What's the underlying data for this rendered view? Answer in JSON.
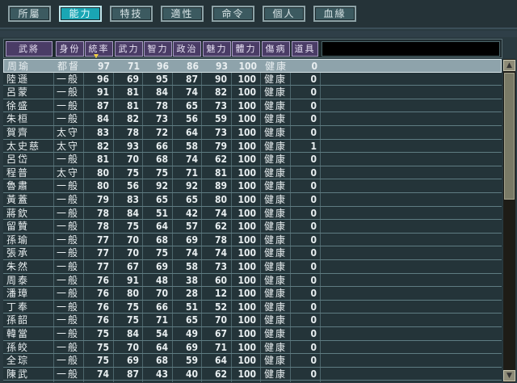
{
  "tabs": [
    {
      "label": "所屬"
    },
    {
      "label": "能力",
      "active": true
    },
    {
      "label": "特技"
    },
    {
      "label": "適性"
    },
    {
      "label": "命令"
    },
    {
      "label": "個人"
    },
    {
      "label": "血緣"
    }
  ],
  "columns": [
    "武將",
    "身份",
    "統率",
    "武力",
    "智力",
    "政治",
    "魅力",
    "體力",
    "傷病",
    "道具"
  ],
  "sort_column": "統率",
  "selected_row": 0,
  "rows": [
    [
      "周瑜",
      "都督",
      "97",
      "71",
      "96",
      "86",
      "93",
      "100",
      "健康",
      "0"
    ],
    [
      "陸遜",
      "一般",
      "96",
      "69",
      "95",
      "87",
      "90",
      "100",
      "健康",
      "0"
    ],
    [
      "呂蒙",
      "一般",
      "91",
      "81",
      "84",
      "74",
      "82",
      "100",
      "健康",
      "0"
    ],
    [
      "徐盛",
      "一般",
      "87",
      "81",
      "78",
      "65",
      "73",
      "100",
      "健康",
      "0"
    ],
    [
      "朱桓",
      "一般",
      "84",
      "82",
      "73",
      "56",
      "59",
      "100",
      "健康",
      "0"
    ],
    [
      "賀齊",
      "太守",
      "83",
      "78",
      "72",
      "64",
      "73",
      "100",
      "健康",
      "0"
    ],
    [
      "太史慈",
      "太守",
      "82",
      "93",
      "66",
      "58",
      "79",
      "100",
      "健康",
      "1"
    ],
    [
      "呂岱",
      "一般",
      "81",
      "70",
      "68",
      "74",
      "62",
      "100",
      "健康",
      "0"
    ],
    [
      "程普",
      "太守",
      "80",
      "75",
      "75",
      "71",
      "81",
      "100",
      "健康",
      "0"
    ],
    [
      "魯肅",
      "一般",
      "80",
      "56",
      "92",
      "92",
      "89",
      "100",
      "健康",
      "0"
    ],
    [
      "黃蓋",
      "一般",
      "79",
      "83",
      "65",
      "65",
      "80",
      "100",
      "健康",
      "0"
    ],
    [
      "蔣欽",
      "一般",
      "78",
      "84",
      "51",
      "42",
      "74",
      "100",
      "健康",
      "0"
    ],
    [
      "留贊",
      "一般",
      "78",
      "75",
      "64",
      "57",
      "62",
      "100",
      "健康",
      "0"
    ],
    [
      "孫瑜",
      "一般",
      "77",
      "70",
      "68",
      "69",
      "78",
      "100",
      "健康",
      "0"
    ],
    [
      "張承",
      "一般",
      "77",
      "70",
      "75",
      "74",
      "74",
      "100",
      "健康",
      "0"
    ],
    [
      "朱然",
      "一般",
      "77",
      "67",
      "69",
      "58",
      "73",
      "100",
      "健康",
      "0"
    ],
    [
      "周泰",
      "一般",
      "76",
      "91",
      "48",
      "38",
      "60",
      "100",
      "健康",
      "0"
    ],
    [
      "潘璋",
      "一般",
      "76",
      "80",
      "70",
      "28",
      "12",
      "100",
      "健康",
      "0"
    ],
    [
      "丁奉",
      "一般",
      "76",
      "75",
      "66",
      "51",
      "52",
      "100",
      "健康",
      "0"
    ],
    [
      "孫韶",
      "一般",
      "76",
      "75",
      "71",
      "65",
      "70",
      "100",
      "健康",
      "0"
    ],
    [
      "韓當",
      "一般",
      "75",
      "84",
      "54",
      "49",
      "67",
      "100",
      "健康",
      "0"
    ],
    [
      "孫皎",
      "一般",
      "75",
      "70",
      "64",
      "69",
      "71",
      "100",
      "健康",
      "0"
    ],
    [
      "全琮",
      "一般",
      "75",
      "69",
      "68",
      "59",
      "64",
      "100",
      "健康",
      "0"
    ],
    [
      "陳武",
      "一般",
      "74",
      "87",
      "43",
      "40",
      "62",
      "100",
      "健康",
      "0"
    ]
  ],
  "scrollbar": {
    "position": 0,
    "up_icon": "triangle-up",
    "down_icon": "triangle-down"
  },
  "colors": {
    "active_tab": "#1aa6b4",
    "header": "#4a3c66",
    "selected_row": "#8ea3ab",
    "background": "#243439"
  }
}
